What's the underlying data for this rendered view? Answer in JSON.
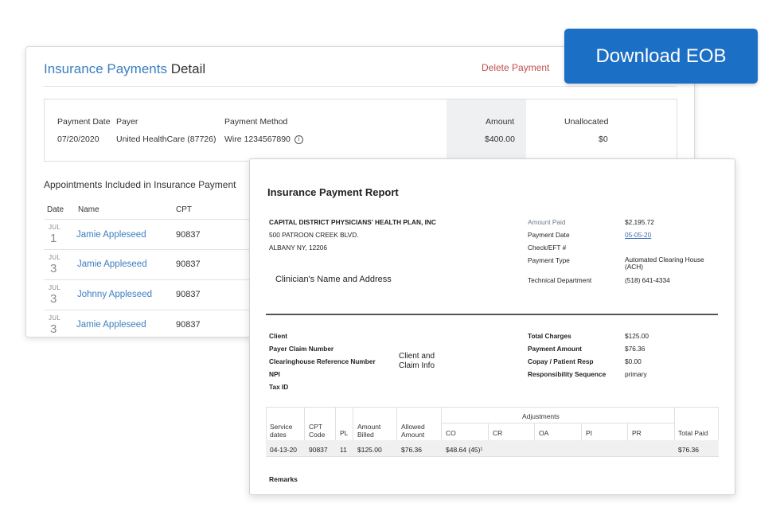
{
  "download_button": "Download EOB",
  "detail": {
    "title_accent": "Insurance Payments",
    "title_rest": "Detail",
    "delete_label": "Delete Payment",
    "summary": {
      "headers": {
        "payment_date": "Payment Date",
        "payer": "Payer",
        "payment_method": "Payment Method",
        "amount": "Amount",
        "unallocated": "Unallocated"
      },
      "values": {
        "payment_date": "07/20/2020",
        "payer": "United HealthCare (87726)",
        "payment_method": "Wire 1234567890",
        "amount": "$400.00",
        "unallocated": "$0"
      },
      "info_glyph": "i"
    },
    "appointments": {
      "heading": "Appointments Included in Insurance Payment",
      "headers": {
        "date": "Date",
        "name": "Name",
        "cpt": "CPT"
      },
      "rows": [
        {
          "month": "JUL",
          "day": "1",
          "name": "Jamie Appleseed",
          "cpt": "90837"
        },
        {
          "month": "JUL",
          "day": "3",
          "name": "Jamie Appleseed",
          "cpt": "90837"
        },
        {
          "month": "JUL",
          "day": "3",
          "name": "Johnny Appleseed",
          "cpt": "90837"
        },
        {
          "month": "JUL",
          "day": "3",
          "name": "Jamie Appleseed",
          "cpt": "90837"
        }
      ]
    }
  },
  "report": {
    "title": "Insurance Payment Report",
    "payer_address": [
      "CAPITAL DISTRICT PHYSICIANS' HEALTH PLAN, INC",
      "500 PATROON CREEK BLVD.",
      "ALBANY NY, 12206"
    ],
    "clinician_label": "Clinician's Name and Address",
    "payment_info": {
      "amount_paid_label": "Amount Paid",
      "amount_paid": "$2,195.72",
      "payment_date_label": "Payment Date",
      "payment_date": "05-05-20",
      "check_label": "Check/EFT #",
      "payment_type_label": "Payment Type",
      "payment_type": "Automated Clearing House (ACH)",
      "tech_label": "Technical Department",
      "tech_phone": "(518) 641-4334"
    },
    "client_fields": [
      "Client",
      "Payer Claim Number",
      "Clearinghouse Reference Number",
      "NPI",
      "Tax ID"
    ],
    "client_claim_label": "Client and Claim Info",
    "totals": {
      "total_charges_label": "Total Charges",
      "total_charges": "$125.00",
      "payment_amount_label": "Payment Amount",
      "payment_amount": "$76.36",
      "copay_label": "Copay / Patient Resp",
      "copay": "$0.00",
      "resp_seq_label": "Responsibility Sequence",
      "resp_seq": "primary"
    },
    "table": {
      "adjustments_label": "Adjustments",
      "headers": {
        "service_dates": "Service dates",
        "cpt_code": "CPT Code",
        "pl": "PL",
        "amount_billed": "Amount Billed",
        "allowed_amount": "Allowed Amount",
        "co": "CO",
        "cr": "CR",
        "oa": "OA",
        "pi": "PI",
        "pr": "PR",
        "total_paid": "Total Paid"
      },
      "row": {
        "service_date": "04-13-20",
        "cpt_code": "90837",
        "pl": "11",
        "amount_billed": "$125.00",
        "allowed_amount": "$76.36",
        "co": "$48.64 (45)¹",
        "total_paid": "$76.36"
      }
    },
    "remarks_label": "Remarks"
  }
}
